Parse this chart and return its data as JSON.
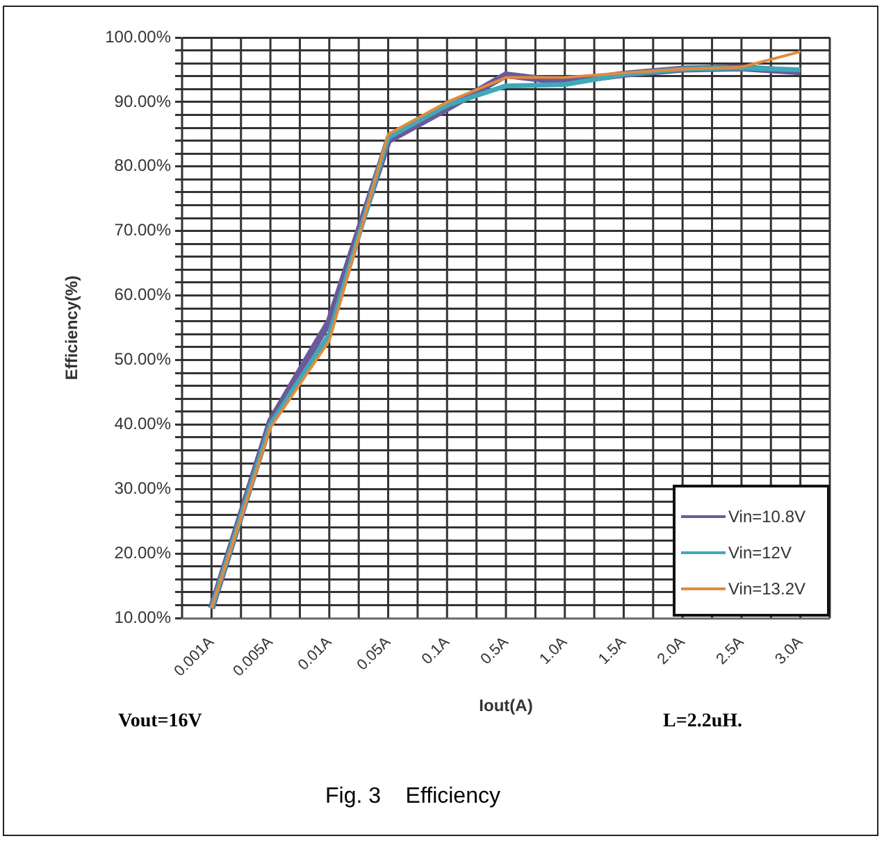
{
  "chart_data": {
    "type": "line",
    "xlabel": "Iout(A)",
    "ylabel": "Efficiency(%)",
    "categories": [
      "0.001A",
      "0.005A",
      "0.01A",
      "0.05A",
      "0.1A",
      "0.5A",
      "1.0A",
      "1.5A",
      "2.0A",
      "2.5A",
      "3.0A"
    ],
    "series": [
      {
        "name": "Vin=10.8V",
        "color": "#6a5a9a",
        "values": [
          11.5,
          40.5,
          56,
          84,
          89,
          94.2,
          93.1,
          94.3,
          95.1,
          95.3,
          94.7
        ]
      },
      {
        "name": "Vin=12V",
        "color": "#3fa9b8",
        "values": [
          11.5,
          40,
          54,
          84.5,
          89.5,
          92.5,
          92.7,
          94.3,
          95.1,
          95.3,
          95
        ]
      },
      {
        "name": "Vin=13.2V",
        "color": "#e28a3c",
        "values": [
          11.5,
          39.5,
          53,
          85,
          90,
          93.8,
          93.8,
          94.5,
          95.1,
          95.4,
          97.8
        ]
      }
    ],
    "ylim": [
      10,
      100
    ],
    "yticks": [
      {
        "value": 10,
        "label": "10.00%"
      },
      {
        "value": 12,
        "label": null
      },
      {
        "value": 14,
        "label": null
      },
      {
        "value": 16,
        "label": null
      },
      {
        "value": 18,
        "label": null
      },
      {
        "value": 20,
        "label": "20.00%"
      },
      {
        "value": 22,
        "label": null
      },
      {
        "value": 24,
        "label": null
      },
      {
        "value": 26,
        "label": null
      },
      {
        "value": 28,
        "label": null
      },
      {
        "value": 30,
        "label": "30.00%"
      },
      {
        "value": 32,
        "label": null
      },
      {
        "value": 34,
        "label": null
      },
      {
        "value": 36,
        "label": null
      },
      {
        "value": 38,
        "label": null
      },
      {
        "value": 40,
        "label": "40.00%"
      },
      {
        "value": 42,
        "label": null
      },
      {
        "value": 44,
        "label": null
      },
      {
        "value": 46,
        "label": null
      },
      {
        "value": 48,
        "label": null
      },
      {
        "value": 50,
        "label": "50.00%"
      },
      {
        "value": 52,
        "label": null
      },
      {
        "value": 54,
        "label": null
      },
      {
        "value": 56,
        "label": null
      },
      {
        "value": 58,
        "label": null
      },
      {
        "value": 60,
        "label": "60.00%"
      },
      {
        "value": 62,
        "label": null
      },
      {
        "value": 64,
        "label": null
      },
      {
        "value": 66,
        "label": null
      },
      {
        "value": 68,
        "label": null
      },
      {
        "value": 70,
        "label": "70.00%"
      },
      {
        "value": 72,
        "label": null
      },
      {
        "value": 74,
        "label": null
      },
      {
        "value": 76,
        "label": null
      },
      {
        "value": 78,
        "label": null
      },
      {
        "value": 80,
        "label": "80.00%"
      },
      {
        "value": 82,
        "label": null
      },
      {
        "value": 84,
        "label": null
      },
      {
        "value": 86,
        "label": null
      },
      {
        "value": 88,
        "label": null
      },
      {
        "value": 90,
        "label": "90.00%"
      },
      {
        "value": 92,
        "label": null
      },
      {
        "value": 94,
        "label": null
      },
      {
        "value": 96,
        "label": null
      },
      {
        "value": 98,
        "label": null
      },
      {
        "value": 100,
        "label": "100.00%"
      }
    ],
    "grid": true,
    "legend": "bottom right",
    "marker": "none",
    "line_style": "solid",
    "annotations": [
      "Vout=16V",
      "L=2.2uH.",
      "Fig. 3    Efficiency"
    ]
  }
}
